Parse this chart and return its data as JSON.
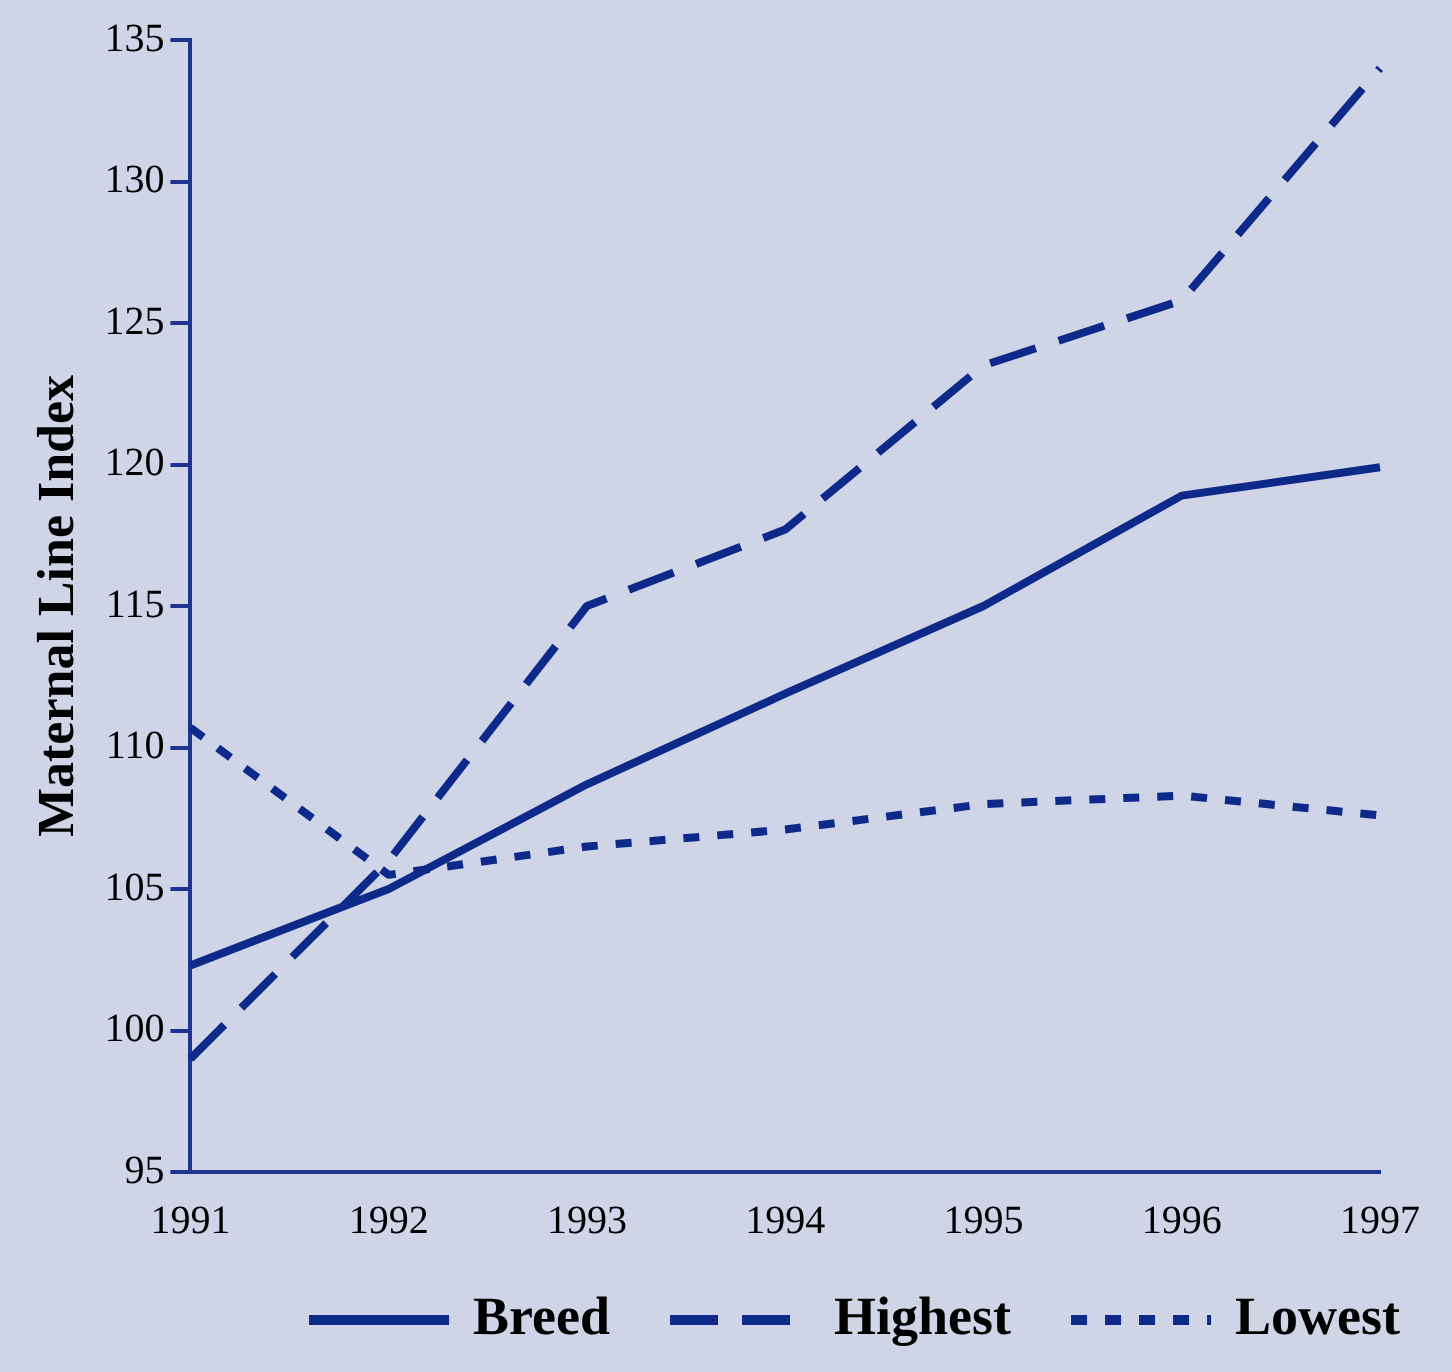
{
  "chart_data": {
    "type": "line",
    "ylabel": "Maternal Line Index",
    "categories": [
      "1991",
      "1992",
      "1993",
      "1994",
      "1995",
      "1996",
      "1997"
    ],
    "ylim": [
      95,
      135
    ],
    "yticks": [
      95,
      100,
      105,
      110,
      115,
      120,
      125,
      130,
      135
    ],
    "grid": false,
    "legend": "bottom",
    "marker": "none",
    "series": [
      {
        "name": "Breed",
        "color": "#0d2a8a",
        "line_style": "solid",
        "values": [
          102.3,
          105,
          108.7,
          111.9,
          115,
          118.9,
          119.9
        ]
      },
      {
        "name": "Highest",
        "color": "#0d2a8a",
        "line_style": "dashed",
        "values": [
          99,
          106,
          115,
          117.7,
          123.5,
          125.8,
          134
        ]
      },
      {
        "name": "Lowest",
        "color": "#0d2a8a",
        "line_style": "dotted",
        "values": [
          110.7,
          105.5,
          106.5,
          107.1,
          108,
          108.3,
          107.6
        ]
      }
    ]
  }
}
